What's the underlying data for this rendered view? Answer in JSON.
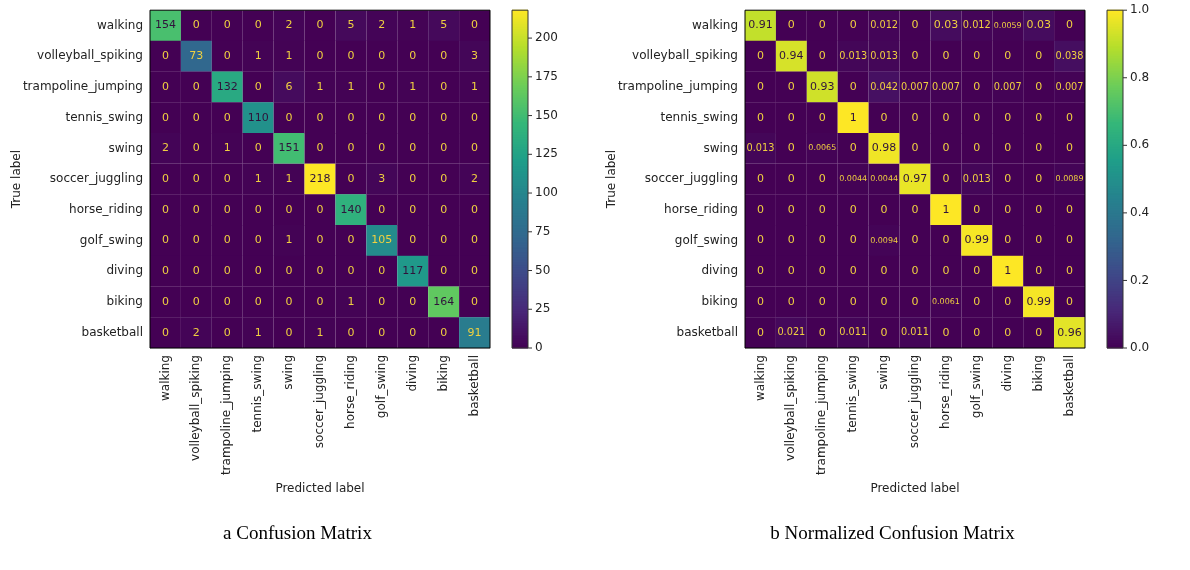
{
  "chart_data": [
    {
      "type": "heatmap",
      "title": "a Confusion Matrix",
      "xlabel": "Predicted label",
      "ylabel": "True label",
      "categories": [
        "walking",
        "volleyball_spiking",
        "trampoline_jumping",
        "tennis_swing",
        "swing",
        "soccer_juggling",
        "horse_riding",
        "golf_swing",
        "diving",
        "biking",
        "basketball"
      ],
      "y_categories": [
        "walking",
        "volleyball_spiking",
        "trampoline_jumping",
        "tennis_swing",
        "swing",
        "soccer_juggling",
        "horse_riding",
        "golf_swing",
        "diving",
        "biking",
        "basketball"
      ],
      "cells": [
        [
          154,
          0,
          0,
          0,
          2,
          0,
          5,
          2,
          1,
          5,
          0
        ],
        [
          0,
          73,
          0,
          1,
          1,
          0,
          0,
          0,
          0,
          0,
          3
        ],
        [
          0,
          0,
          132,
          0,
          6,
          1,
          1,
          0,
          1,
          0,
          1
        ],
        [
          0,
          0,
          0,
          110,
          0,
          0,
          0,
          0,
          0,
          0,
          0
        ],
        [
          2,
          0,
          1,
          0,
          151,
          0,
          0,
          0,
          0,
          0,
          0
        ],
        [
          0,
          0,
          0,
          1,
          1,
          218,
          0,
          3,
          0,
          0,
          2
        ],
        [
          0,
          0,
          0,
          0,
          0,
          0,
          140,
          0,
          0,
          0,
          0
        ],
        [
          0,
          0,
          0,
          0,
          1,
          0,
          0,
          105,
          0,
          0,
          0
        ],
        [
          0,
          0,
          0,
          0,
          0,
          0,
          0,
          0,
          117,
          0,
          0
        ],
        [
          0,
          0,
          0,
          0,
          0,
          0,
          1,
          0,
          0,
          164,
          0
        ],
        [
          0,
          2,
          0,
          1,
          0,
          1,
          0,
          0,
          0,
          0,
          91
        ]
      ],
      "clim": [
        0,
        218
      ],
      "cticks": [
        0,
        25,
        50,
        75,
        100,
        125,
        150,
        175,
        200
      ],
      "data_labels": true
    },
    {
      "type": "heatmap",
      "title": "b Normalized Confusion Matrix",
      "xlabel": "Predicted label",
      "ylabel": "True label",
      "categories": [
        "walking",
        "volleyball_spiking",
        "trampoline_jumping",
        "tennis_swing",
        "swing",
        "soccer_juggling",
        "horse_riding",
        "golf_swing",
        "diving",
        "biking",
        "basketball"
      ],
      "y_categories": [
        "walking",
        "volleyball_spiking",
        "trampoline_jumping",
        "tennis_swing",
        "swing",
        "soccer_juggling",
        "horse_riding",
        "golf_swing",
        "diving",
        "biking",
        "basketball"
      ],
      "cells": [
        [
          0.91,
          0,
          0,
          0,
          0.012,
          0,
          0.03,
          0.012,
          0.0059,
          0.03,
          0
        ],
        [
          0,
          0.94,
          0,
          0.013,
          0.013,
          0,
          0,
          0,
          0,
          0,
          0.038
        ],
        [
          0,
          0,
          0.93,
          0,
          0.042,
          0.007,
          0.007,
          0,
          0.007,
          0,
          0.007
        ],
        [
          0,
          0,
          0,
          1,
          0,
          0,
          0,
          0,
          0,
          0,
          0
        ],
        [
          0.013,
          0,
          0.0065,
          0,
          0.98,
          0,
          0,
          0,
          0,
          0,
          0
        ],
        [
          0,
          0,
          0,
          0.0044,
          0.0044,
          0.97,
          0,
          0.013,
          0,
          0,
          0.0089
        ],
        [
          0,
          0,
          0,
          0,
          0,
          0,
          1,
          0,
          0,
          0,
          0
        ],
        [
          0,
          0,
          0,
          0,
          0.0094,
          0,
          0,
          0.99,
          0,
          0,
          0
        ],
        [
          0,
          0,
          0,
          0,
          0,
          0,
          0,
          0,
          1,
          0,
          0
        ],
        [
          0,
          0,
          0,
          0,
          0,
          0,
          0.0061,
          0,
          0,
          0.99,
          0
        ],
        [
          0,
          0.021,
          0,
          0.011,
          0,
          0.011,
          0,
          0,
          0,
          0,
          0.96
        ]
      ],
      "clim": [
        0,
        1
      ],
      "cticks": [
        {
          "value": 0,
          "label": "0.0"
        },
        {
          "value": 0.2,
          "label": "0.2"
        },
        {
          "value": 0.4,
          "label": "0.4"
        },
        {
          "value": 0.6,
          "label": "0.6"
        },
        {
          "value": 0.8,
          "label": "0.8"
        },
        {
          "value": 1,
          "label": "1.0"
        }
      ],
      "data_labels": true
    }
  ]
}
